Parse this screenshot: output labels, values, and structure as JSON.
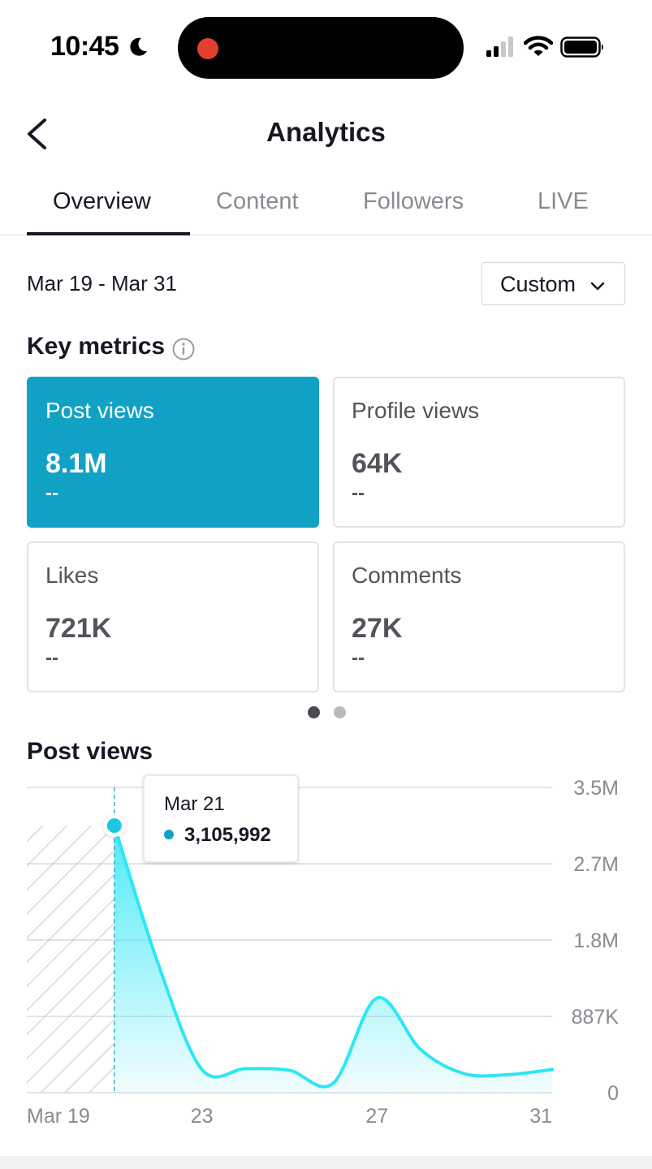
{
  "status_bar": {
    "time": "10:45"
  },
  "header": {
    "title": "Analytics"
  },
  "tabs": [
    {
      "label": "Overview",
      "active": true
    },
    {
      "label": "Content",
      "active": false
    },
    {
      "label": "Followers",
      "active": false
    },
    {
      "label": "LIVE",
      "active": false
    }
  ],
  "date_filter": {
    "range": "Mar 19 - Mar 31",
    "selector_label": "Custom"
  },
  "key_metrics": {
    "title": "Key metrics",
    "cards": [
      {
        "label": "Post views",
        "value": "8.1M",
        "change": "--",
        "selected": true
      },
      {
        "label": "Profile views",
        "value": "64K",
        "change": "--",
        "selected": false
      },
      {
        "label": "Likes",
        "value": "721K",
        "change": "--",
        "selected": false
      },
      {
        "label": "Comments",
        "value": "27K",
        "change": "--",
        "selected": false
      }
    ],
    "page_index": 1,
    "page_count": 2
  },
  "colors": {
    "accent": "#11a1c4",
    "line": "#2ee6f5",
    "text": "#161823",
    "muted": "#8a8b91"
  },
  "chart_data": {
    "type": "line",
    "title": "Post views",
    "x": [
      "Mar 19",
      "Mar 20",
      "Mar 21",
      "Mar 22",
      "Mar 23",
      "Mar 24",
      "Mar 25",
      "Mar 26",
      "Mar 27",
      "Mar 28",
      "Mar 29",
      "Mar 30",
      "Mar 31"
    ],
    "x_tick_labels": [
      "Mar 19",
      "23",
      "27",
      "31"
    ],
    "y_tick_labels": [
      "3.5M",
      "2.7M",
      "1.8M",
      "887K",
      "0"
    ],
    "y_ticks": [
      3550000,
      2662500,
      1775000,
      887000,
      0
    ],
    "ylim": [
      0,
      3550000
    ],
    "series": [
      {
        "values": [
          null,
          null,
          3105992,
          1500000,
          270000,
          280000,
          260000,
          110000,
          1100000,
          500000,
          220000,
          210000,
          270000
        ]
      }
    ],
    "tooltip": {
      "date": "Mar 21",
      "value": "3,105,992"
    },
    "grid": true,
    "hatched_region": [
      "Mar 19",
      "Mar 21"
    ]
  }
}
